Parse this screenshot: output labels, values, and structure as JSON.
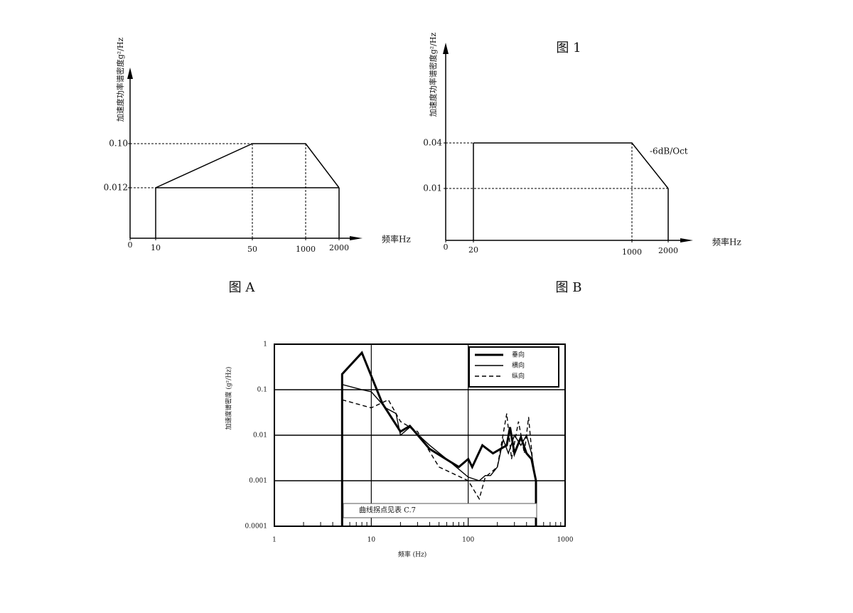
{
  "figure_label": "图 1",
  "chart_data": [
    {
      "type": "schematic",
      "title": "图 A",
      "ylabel": "加速度功率谱密度g²/Hz",
      "xlabel": "频率Hz",
      "x": [
        10,
        50,
        1000,
        2000
      ],
      "values": [
        0.012,
        0.1,
        0.1,
        0.012
      ],
      "color": "#000000",
      "xticks": [
        0,
        10,
        50,
        1000,
        2000
      ],
      "yticks": [
        0.012,
        {
          "value": 0.1,
          "label": "0.10"
        }
      ]
    },
    {
      "type": "schematic",
      "title": "图 B",
      "ylabel": "加速度功率谱密度g²/Hz",
      "xlabel": "频率Hz",
      "annotation": "-6dB/Oct",
      "x": [
        20,
        1000,
        2000
      ],
      "values": [
        0.04,
        0.04,
        0.01
      ],
      "color": "#000000",
      "xticks": [
        0,
        20,
        1000,
        2000
      ],
      "yticks": [
        0.01,
        0.04
      ]
    },
    {
      "type": "line",
      "xlabel": "频率 (Hz)",
      "ylabel": "加速度谱密度 (g²/Hz)",
      "annotation": "曲线拐点见表 C.7",
      "xscale": "log",
      "yscale": "log",
      "grid": true,
      "legend": "upper right",
      "xlim": [
        1,
        1000
      ],
      "ylim": [
        0.0001,
        1
      ],
      "xticks": [
        1,
        10,
        100,
        1000
      ],
      "yticks": [
        0.0001,
        0.001,
        0.01,
        0.1,
        1
      ],
      "series": [
        {
          "name": "垂向",
          "color": "#000000",
          "style": "thick",
          "x": [
            5,
            5,
            8,
            10,
            13,
            20,
            25,
            40,
            80,
            100,
            110,
            140,
            180,
            250,
            270,
            300,
            350,
            400,
            450,
            500,
            500
          ],
          "values": [
            0.0001,
            0.22,
            0.65,
            0.2,
            0.05,
            0.012,
            0.016,
            0.005,
            0.002,
            0.003,
            0.002,
            0.006,
            0.004,
            0.006,
            0.015,
            0.004,
            0.009,
            0.004,
            0.003,
            0.001,
            0.0001
          ]
        },
        {
          "name": "横向",
          "color": "#000000",
          "style": "thin",
          "x": [
            5,
            8,
            10,
            14,
            18,
            20,
            25,
            40,
            60,
            100,
            130,
            150,
            170,
            200,
            230,
            260,
            300,
            350,
            400,
            450,
            500
          ],
          "values": [
            0.13,
            0.1,
            0.09,
            0.04,
            0.03,
            0.01,
            0.015,
            0.006,
            0.003,
            0.0012,
            0.001,
            0.0013,
            0.0013,
            0.002,
            0.008,
            0.004,
            0.01,
            0.006,
            0.01,
            0.004,
            0.001
          ]
        },
        {
          "name": "纵向",
          "color": "#000000",
          "style": "dashed",
          "x": [
            5,
            10,
            15,
            20,
            30,
            50,
            100,
            130,
            150,
            200,
            250,
            280,
            330,
            380,
            420,
            460,
            500
          ],
          "values": [
            0.06,
            0.04,
            0.06,
            0.02,
            0.012,
            0.002,
            0.001,
            0.0004,
            0.0012,
            0.002,
            0.03,
            0.003,
            0.02,
            0.004,
            0.025,
            0.003,
            0.001
          ]
        }
      ]
    }
  ]
}
